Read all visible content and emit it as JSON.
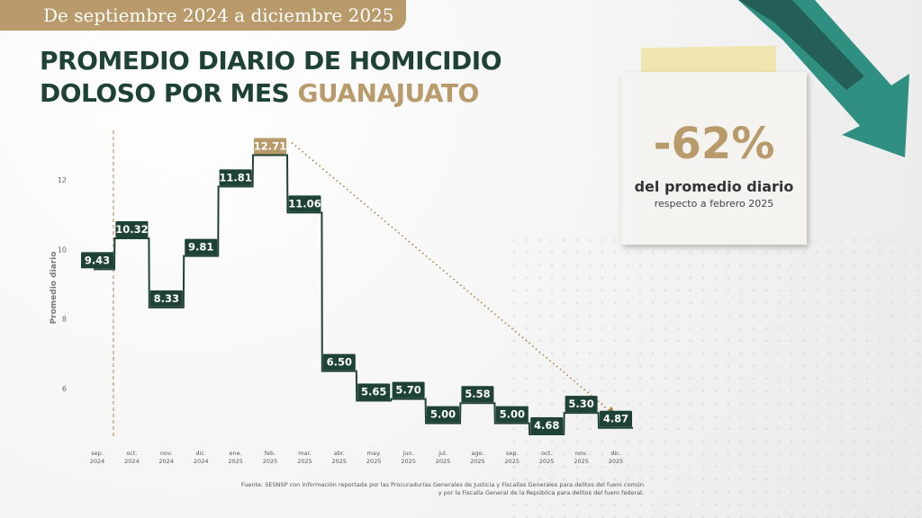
{
  "header": {
    "date_range": "De septiembre 2024 a diciembre 2025",
    "title_line1": "PROMEDIO DIARIO DE HOMICIDIO",
    "title_line2": "DOLOSO POR MES",
    "title_state": "GUANAJUATO"
  },
  "callout": {
    "percent": "-62%",
    "line1": "del promedio diario",
    "line2": "respecto a febrero 2025"
  },
  "source": {
    "line1": "Fuente: SESNSP con información reportada por las Procuradurías Generales de Justicia y Fiscalías Generales para delitos del fuero común",
    "line2": "y por la Fiscalía General de la República para delitos del fuero federal."
  },
  "colors": {
    "dark_green": "#1e4236",
    "gold": "#b99a6b"
  },
  "chart_data": {
    "type": "line",
    "step": true,
    "ylabel": "Promedio diario",
    "yticks": [
      6,
      8,
      10,
      12
    ],
    "ylim": [
      4.3,
      13.5
    ],
    "categories": [
      [
        "sep.",
        "2024"
      ],
      [
        "oct.",
        "2024"
      ],
      [
        "nov.",
        "2024"
      ],
      [
        "dic.",
        "2024"
      ],
      [
        "ene.",
        "2025"
      ],
      [
        "feb.",
        "2025"
      ],
      [
        "mar.",
        "2025"
      ],
      [
        "abr.",
        "2025"
      ],
      [
        "may.",
        "2025"
      ],
      [
        "jun.",
        "2025"
      ],
      [
        "jul.",
        "2025"
      ],
      [
        "ago.",
        "2025"
      ],
      [
        "sep.",
        "2025"
      ],
      [
        "oct.",
        "2025"
      ],
      [
        "nov.",
        "2025"
      ],
      [
        "dic.",
        "2025"
      ]
    ],
    "values": [
      9.43,
      10.32,
      8.33,
      9.81,
      11.81,
      12.71,
      11.06,
      6.5,
      5.65,
      5.7,
      5.0,
      5.58,
      5.0,
      4.68,
      5.3,
      4.87
    ],
    "labels": [
      "9.43",
      "10.32",
      "8.33",
      "9.81",
      "11.81",
      "12.71",
      "11.06",
      "6.50",
      "5.65",
      "5.70",
      "5.00",
      "5.58",
      "5.00",
      "4.68",
      "5.30",
      "4.87"
    ],
    "highlight_index": 5,
    "legend": "none",
    "grid": false
  }
}
